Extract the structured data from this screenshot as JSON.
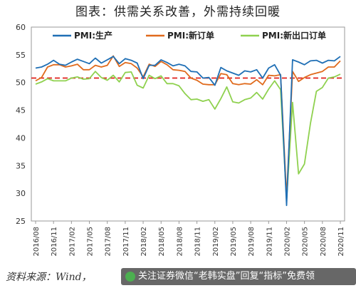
{
  "title": "图表：供需关系改善，外需持续回暖",
  "source": "资料来源：Wind，",
  "watermark": "关注证券微信“老韩实盘”回复“指标”免费领",
  "chart_data": {
    "type": "line",
    "ylim": [
      25,
      60
    ],
    "yticks": [
      25,
      30,
      35,
      40,
      45,
      50,
      55,
      60
    ],
    "x_labels": [
      "2016/08",
      "2016/11",
      "2017/02",
      "2017/05",
      "2017/08",
      "2017/11",
      "2018/02",
      "2018/05",
      "2018/08",
      "2018/11",
      "2019/02",
      "2019/05",
      "2019/08",
      "2019/11",
      "2020/02",
      "2020/05",
      "2020/08",
      "2020/11"
    ],
    "x": [
      "2016/08",
      "2016/09",
      "2016/10",
      "2016/11",
      "2016/12",
      "2017/01",
      "2017/02",
      "2017/03",
      "2017/04",
      "2017/05",
      "2017/06",
      "2017/07",
      "2017/08",
      "2017/09",
      "2017/10",
      "2017/11",
      "2017/12",
      "2018/01",
      "2018/02",
      "2018/03",
      "2018/04",
      "2018/05",
      "2018/06",
      "2018/07",
      "2018/08",
      "2018/09",
      "2018/10",
      "2018/11",
      "2018/12",
      "2019/01",
      "2019/02",
      "2019/03",
      "2019/04",
      "2019/05",
      "2019/06",
      "2019/07",
      "2019/08",
      "2019/09",
      "2019/10",
      "2019/11",
      "2019/12",
      "2020/01",
      "2020/02",
      "2020/03",
      "2020/04",
      "2020/05",
      "2020/06",
      "2020/07",
      "2020/08",
      "2020/09",
      "2020/10",
      "2020/11"
    ],
    "reference_line": {
      "value": 50.8,
      "color": "#e0201b",
      "style": "dashed"
    },
    "series": [
      {
        "name": "PMI:生产",
        "color": "#1f6fb5",
        "values": [
          52.6,
          52.8,
          53.3,
          54.0,
          53.3,
          53.1,
          53.7,
          54.2,
          53.8,
          53.4,
          54.4,
          53.5,
          54.1,
          54.7,
          53.4,
          54.3,
          54.0,
          53.5,
          50.7,
          53.1,
          53.1,
          54.1,
          53.6,
          53.0,
          53.3,
          53.0,
          52.0,
          51.9,
          50.8,
          50.9,
          49.5,
          52.7,
          52.1,
          51.7,
          51.3,
          52.1,
          51.9,
          52.3,
          50.8,
          52.6,
          53.2,
          51.3,
          27.8,
          54.1,
          53.7,
          53.2,
          53.9,
          54.0,
          53.5,
          54.0,
          53.9,
          54.7
        ]
      },
      {
        "name": "PMI:新订单",
        "color": "#e06a1c",
        "values": [
          50.3,
          50.9,
          52.8,
          53.2,
          53.2,
          52.8,
          53.0,
          53.3,
          52.3,
          52.3,
          53.1,
          52.8,
          53.1,
          54.8,
          52.9,
          53.6,
          53.4,
          52.6,
          51.0,
          53.3,
          52.9,
          53.8,
          53.2,
          52.3,
          52.2,
          52.0,
          50.8,
          50.4,
          49.7,
          49.6,
          49.6,
          51.6,
          51.4,
          49.8,
          49.6,
          49.8,
          49.7,
          50.5,
          49.6,
          51.3,
          51.2,
          51.4,
          29.3,
          52.0,
          50.2,
          50.9,
          51.4,
          51.7,
          52.0,
          52.8,
          52.8,
          53.9
        ]
      },
      {
        "name": "PMI:新出口订单",
        "color": "#8fd14f",
        "values": [
          49.7,
          50.1,
          50.7,
          50.3,
          50.3,
          50.3,
          50.8,
          51.0,
          50.6,
          50.7,
          52.0,
          50.9,
          50.4,
          51.3,
          50.1,
          51.8,
          51.9,
          49.5,
          49.0,
          51.3,
          50.7,
          51.2,
          49.8,
          49.8,
          49.4,
          48.0,
          46.9,
          47.0,
          46.6,
          46.9,
          45.2,
          47.1,
          49.2,
          46.5,
          46.3,
          46.9,
          47.2,
          48.2,
          47.0,
          48.8,
          50.3,
          48.7,
          28.7,
          46.4,
          33.5,
          35.3,
          42.6,
          48.4,
          49.1,
          50.8,
          51.0,
          51.5
        ]
      }
    ]
  }
}
